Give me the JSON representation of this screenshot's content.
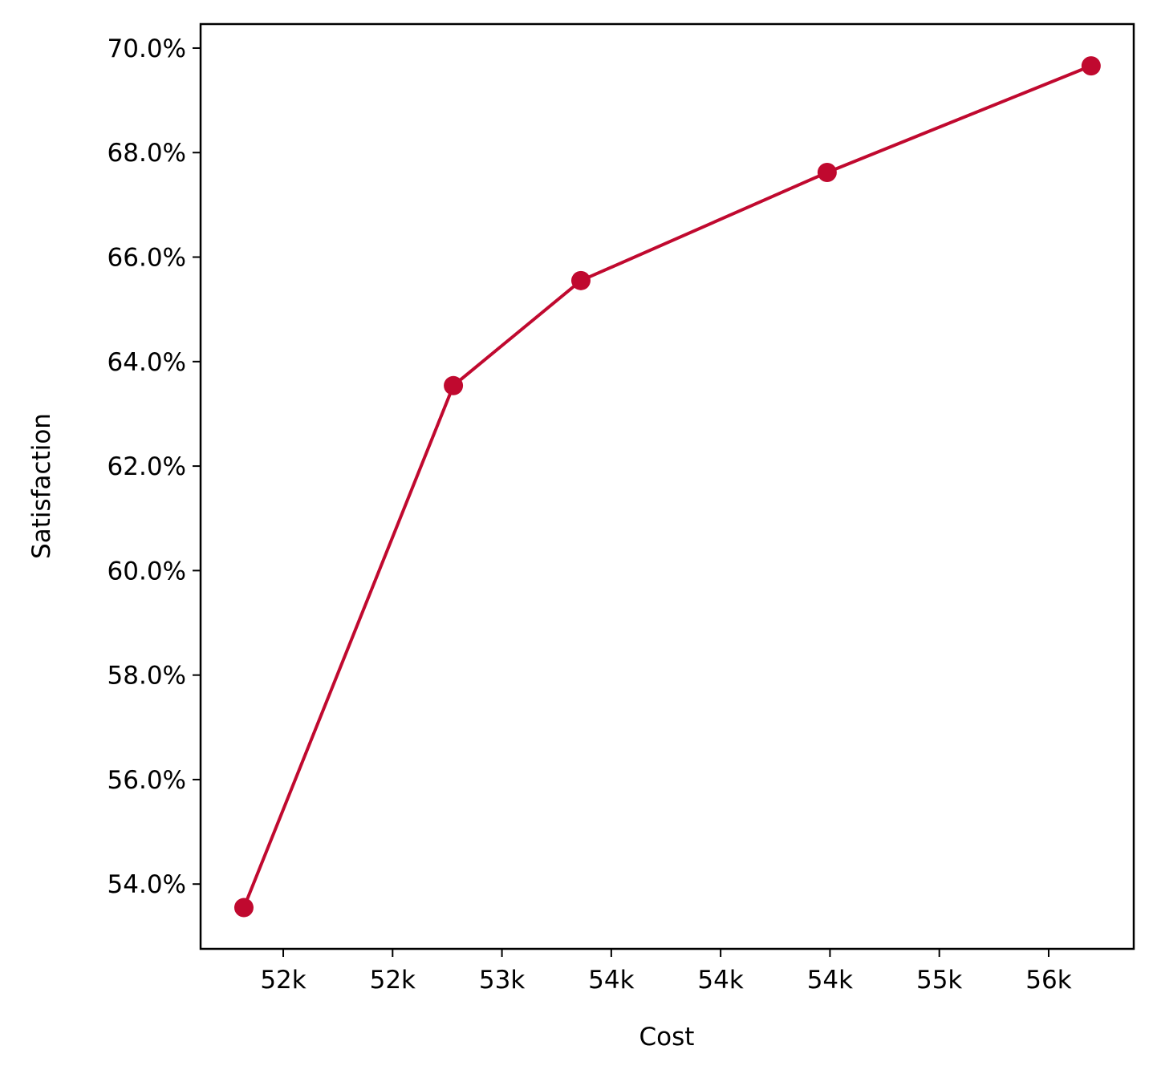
{
  "chart_data": {
    "type": "line",
    "x_label": "Cost",
    "y_label": "Satisfaction",
    "series": [
      {
        "color": "#c0092f",
        "x": [
          51820,
          52778,
          53361,
          54487,
          55694
        ],
        "values": [
          53.55,
          63.54,
          65.55,
          67.62,
          69.66
        ]
      }
    ],
    "xlim": [
      51622,
      55889
    ],
    "xticks": [
      {
        "value": 52000,
        "label": "52k"
      },
      {
        "value": 52500,
        "label": "52k"
      },
      {
        "value": 53000,
        "label": "53k"
      },
      {
        "value": 53500,
        "label": "54k"
      },
      {
        "value": 54000,
        "label": "54k"
      },
      {
        "value": 54500,
        "label": "54k"
      },
      {
        "value": 55000,
        "label": "55k"
      },
      {
        "value": 55500,
        "label": "56k"
      }
    ],
    "ylim": [
      52.76,
      70.46
    ],
    "yticks": [
      {
        "value": 54,
        "label": "54.0%"
      },
      {
        "value": 56,
        "label": "56.0%"
      },
      {
        "value": 58,
        "label": "58.0%"
      },
      {
        "value": 60,
        "label": "60.0%"
      },
      {
        "value": 62,
        "label": "62.0%"
      },
      {
        "value": 64,
        "label": "64.0%"
      },
      {
        "value": 66,
        "label": "66.0%"
      },
      {
        "value": 68,
        "label": "68.0%"
      },
      {
        "value": 70,
        "label": "70.0%"
      }
    ],
    "grid": false
  }
}
